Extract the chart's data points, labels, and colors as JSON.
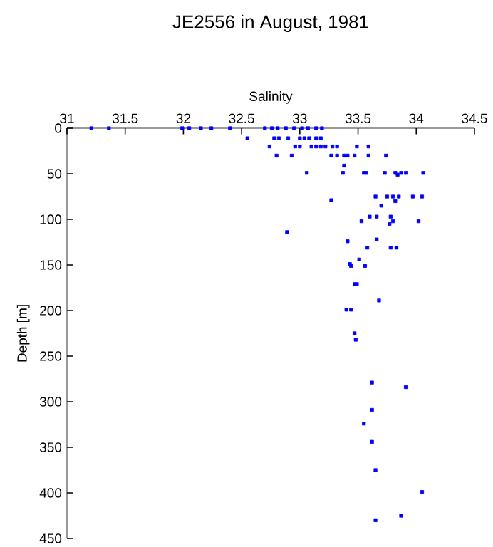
{
  "chart_data": {
    "type": "scatter",
    "title": "JE2556 in August, 1981",
    "xlabel": "Salinity",
    "ylabel": "Depth [m]",
    "xlim": [
      31,
      34.5
    ],
    "xticks": [
      31,
      31.5,
      32,
      32.5,
      33,
      33.5,
      34,
      34.5
    ],
    "ylim": [
      450,
      0
    ],
    "yticks": [
      0,
      50,
      100,
      150,
      200,
      250,
      300,
      350,
      400,
      450
    ],
    "marker": "square",
    "grid": false,
    "series": [
      {
        "color": "#0000ff",
        "x": [
          31.21,
          31.36,
          31.99,
          32.05,
          32.15,
          32.24,
          32.4,
          32.7,
          32.76,
          32.81,
          32.88,
          32.95,
          33.02,
          33.07,
          33.14,
          33.19,
          32.55,
          32.78,
          32.82,
          32.9,
          33.0,
          33.04,
          33.08,
          33.14,
          33.18,
          32.74,
          32.96,
          33.0,
          33.1,
          33.14,
          33.18,
          33.22,
          33.28,
          33.32,
          33.49,
          33.59,
          32.8,
          32.93,
          33.27,
          33.32,
          33.38,
          33.41,
          33.47,
          33.59,
          33.74,
          33.38,
          33.06,
          33.37,
          33.55,
          33.57,
          33.73,
          33.82,
          33.87,
          33.91,
          34.06,
          33.84,
          33.27,
          33.65,
          33.75,
          33.8,
          33.85,
          33.97,
          34.05,
          33.82,
          33.7,
          33.6,
          33.66,
          33.78,
          33.53,
          33.8,
          34.02,
          33.77,
          32.89,
          33.66,
          33.41,
          33.58,
          33.78,
          33.83,
          33.51,
          33.43,
          33.44,
          33.56,
          33.47,
          33.49,
          33.68,
          33.4,
          33.44,
          33.47,
          33.48,
          33.62,
          33.91,
          33.62,
          33.55,
          33.62,
          33.65,
          34.05,
          33.87,
          33.65
        ],
        "values": [
          0,
          0,
          0,
          0,
          0,
          0,
          0,
          0,
          0,
          0,
          0,
          0,
          0,
          0,
          0,
          0,
          11,
          11,
          11,
          11,
          11,
          11,
          11,
          11,
          11,
          20,
          20,
          20,
          20,
          20,
          20,
          20,
          20,
          20,
          20,
          20,
          30,
          30,
          30,
          30,
          30,
          30,
          30,
          30,
          30,
          41,
          49,
          49,
          49,
          49,
          49,
          49,
          49,
          49,
          49,
          51,
          79,
          75,
          75,
          75,
          75,
          75,
          75,
          80,
          85,
          97,
          97,
          97,
          102,
          102,
          102,
          105,
          114,
          122,
          124,
          131,
          131,
          131,
          144,
          149,
          151,
          151,
          171,
          171,
          189,
          199,
          199,
          225,
          232,
          279,
          284,
          309,
          324,
          344,
          375,
          399,
          425,
          430
        ]
      }
    ]
  }
}
